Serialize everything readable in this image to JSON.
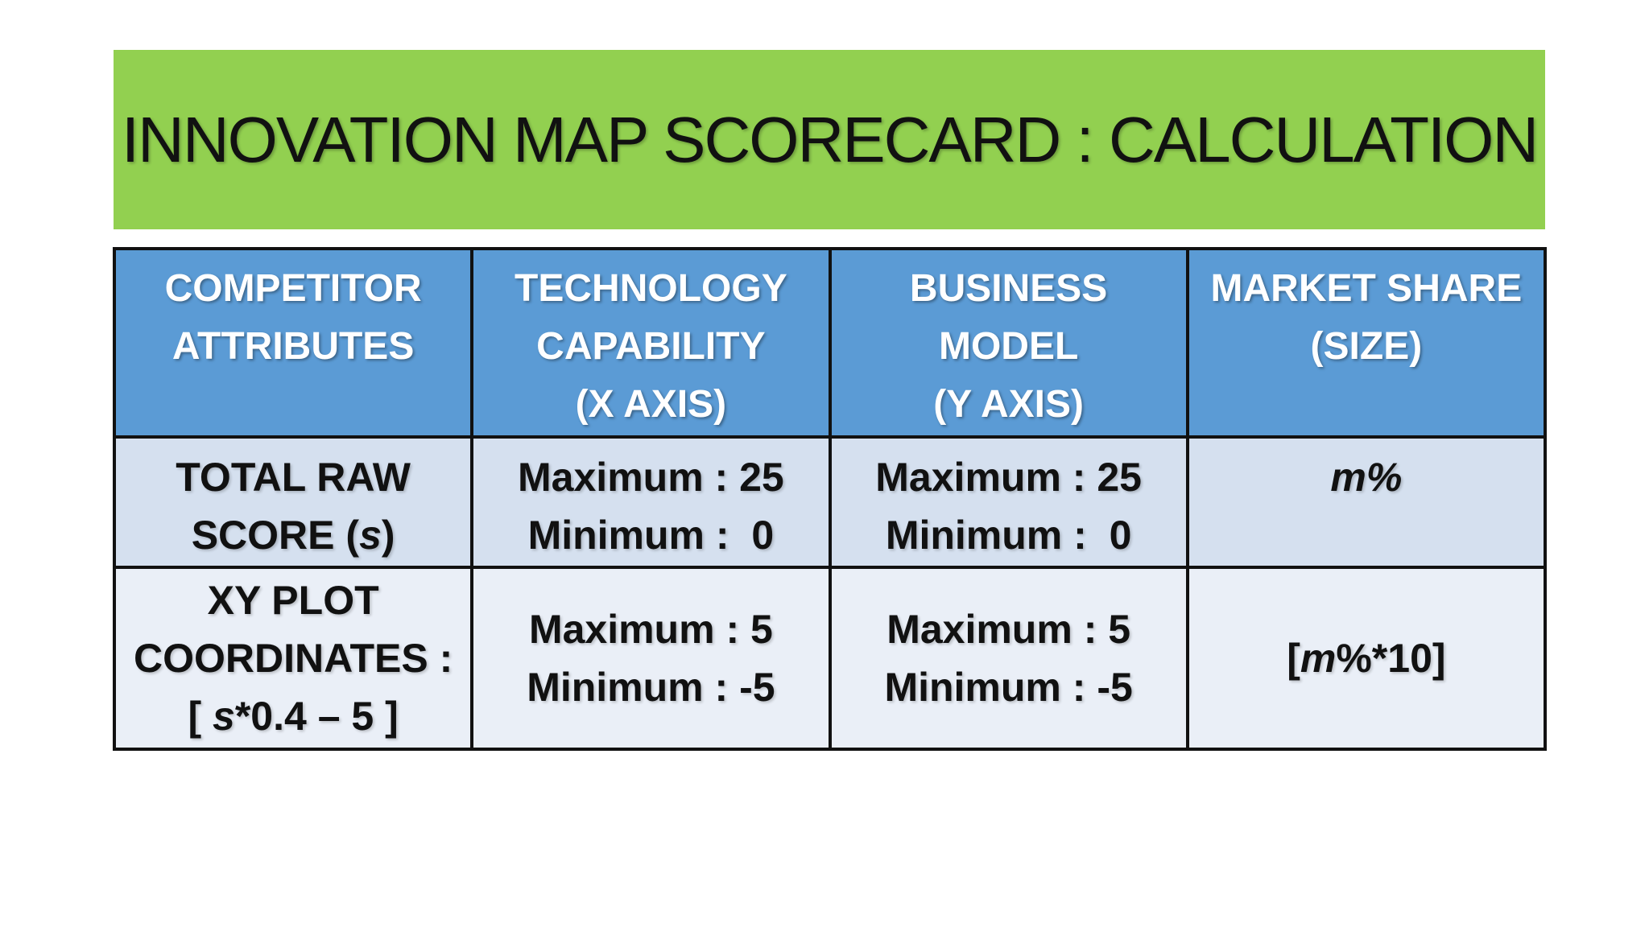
{
  "title": "INNOVATION MAP SCORECARD : CALCULATION",
  "header": {
    "col1": [
      "COMPETITOR",
      "ATTRIBUTES"
    ],
    "col2": [
      "TECHNOLOGY",
      "CAPABILITY",
      "(X AXIS)"
    ],
    "col3": [
      "BUSINESS",
      "MODEL",
      "(Y AXIS)"
    ],
    "col4": [
      "MARKET SHARE",
      "(SIZE)"
    ]
  },
  "raw_score_row": {
    "label_line1": "TOTAL RAW",
    "label_line2_prefix": "SCORE (",
    "label_line2_var": "s",
    "label_line2_suffix": ")",
    "technology": [
      "Maximum : 25",
      "Minimum :  0"
    ],
    "business": [
      "Maximum : 25",
      "Minimum :  0"
    ],
    "market_var": "m",
    "market_suffix": "%"
  },
  "xy_row": {
    "label_line1": "XY PLOT",
    "label_line2": "COORDINATES :",
    "label_line3_prefix": "[ ",
    "label_line3_var": "s",
    "label_line3_suffix": "*0.4 – 5 ]",
    "technology": [
      "Maximum : 5",
      "Minimum : -5"
    ],
    "business": [
      "Maximum : 5",
      "Minimum : -5"
    ],
    "market_prefix": "[",
    "market_var": "m",
    "market_suffix": "%*10]"
  },
  "colors": {
    "title_bg": "#92d050",
    "header_bg": "#5b9bd5",
    "row1_bg": "#d5e0ef",
    "row2_bg": "#eaeff7"
  }
}
